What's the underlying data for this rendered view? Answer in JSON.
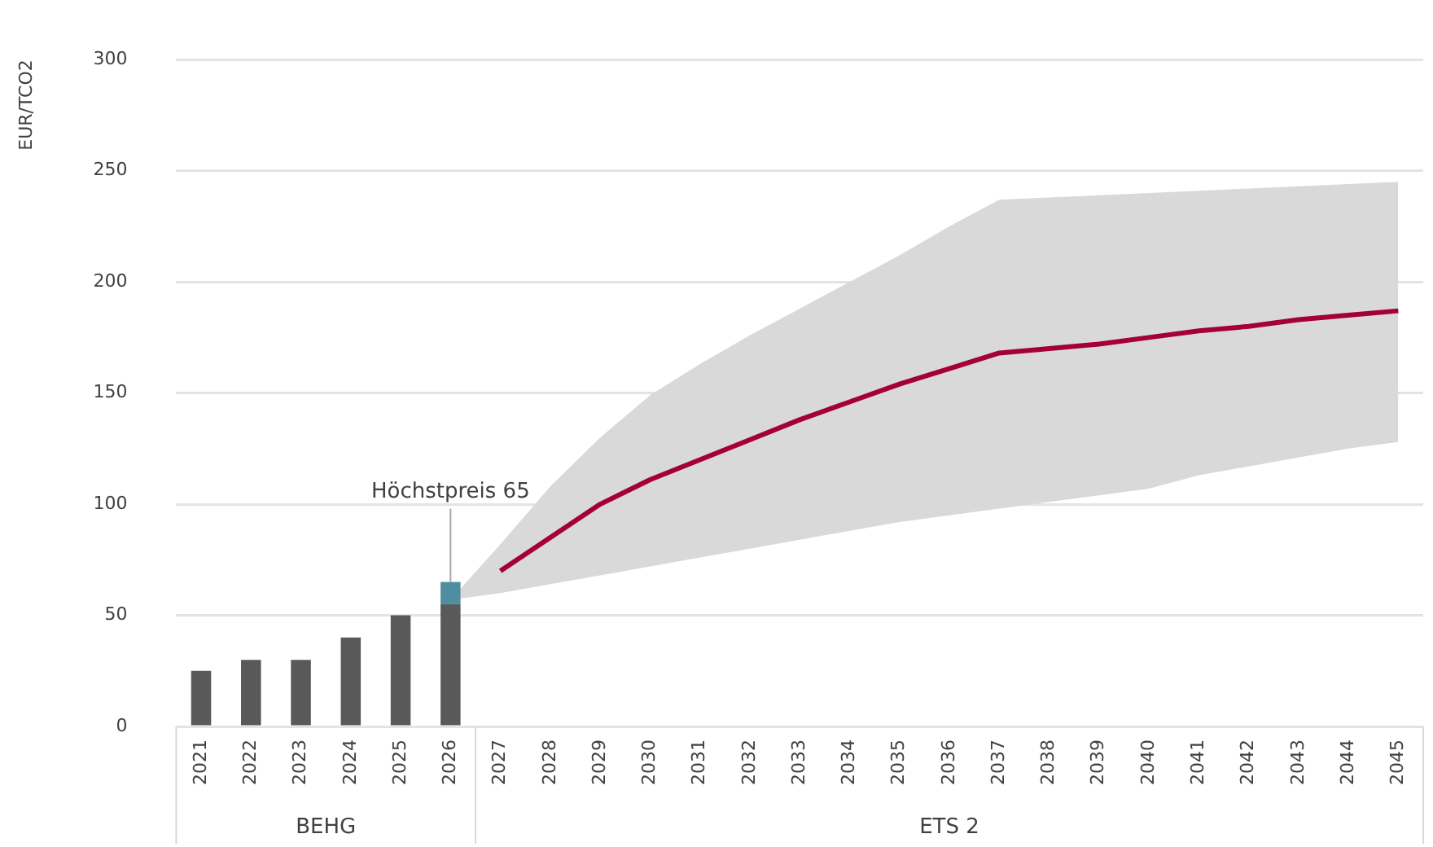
{
  "chart_data": {
    "type": "bar",
    "ylabel": "EUR/TCO2",
    "categories": [
      "2021",
      "2022",
      "2023",
      "2024",
      "2025",
      "2026",
      "2027",
      "2028",
      "2029",
      "2030",
      "2031",
      "2032",
      "2033",
      "2034",
      "2035",
      "2036",
      "2037",
      "2038",
      "2039",
      "2040",
      "2041",
      "2042",
      "2043",
      "2044",
      "2045"
    ],
    "stacked": true,
    "series": [
      {
        "color": "#595959",
        "values": [
          25,
          30,
          30,
          40,
          50,
          55,
          null,
          null,
          null,
          null,
          null,
          null,
          null,
          null,
          null,
          null,
          null,
          null,
          null,
          null,
          null,
          null,
          null,
          null,
          null
        ]
      },
      {
        "color": "#4f8ea0",
        "values": [
          null,
          null,
          null,
          null,
          null,
          10,
          null,
          null,
          null,
          null,
          null,
          null,
          null,
          null,
          null,
          null,
          null,
          null,
          null,
          null,
          null,
          null,
          null,
          null,
          null
        ]
      },
      {
        "type": "line",
        "color": "#a50034",
        "values": [
          null,
          null,
          null,
          null,
          null,
          null,
          70,
          85,
          100,
          111,
          120,
          129,
          138,
          146,
          154,
          161,
          168,
          170,
          172,
          175,
          178,
          180,
          183,
          185,
          187
        ],
        "lower": [
          null,
          null,
          null,
          null,
          null,
          57,
          60,
          64,
          68,
          72,
          76,
          80,
          84,
          88,
          92,
          95,
          98,
          101,
          104,
          107,
          113,
          117,
          121,
          125,
          128
        ],
        "upper": [
          null,
          null,
          null,
          null,
          null,
          57,
          82,
          108,
          130,
          149,
          163,
          176,
          188,
          200,
          212,
          225,
          237,
          238,
          239,
          240,
          241,
          242,
          243,
          244,
          245
        ]
      }
    ],
    "ylim": [
      0,
      300
    ],
    "yticks": [
      0,
      50,
      100,
      150,
      200,
      250,
      300
    ],
    "grid": "y",
    "legend": false,
    "marker": "none",
    "line_style": "solid",
    "annotations": [
      {
        "text": "Höchstpreis 65",
        "x": "2026",
        "y": 65
      },
      "BEHG",
      "ETS 2"
    ]
  }
}
